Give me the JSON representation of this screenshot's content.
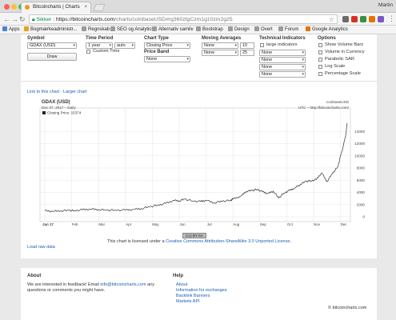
{
  "browser": {
    "tab_title": "Bitcoincharts | Charts",
    "tab_close": "×",
    "user_name": "Martin",
    "secure_label": "Sikker",
    "url_host": "https://bitcoincharts.com",
    "url_path": "/charts/coinbaseUSD#rg360ztgCzm1g10zm2g25",
    "back": "←",
    "forward": "→",
    "reload": "↻",
    "star": "☆"
  },
  "bookmarks": [
    {
      "label": "Apps",
      "color": "#4a7fd8"
    },
    {
      "label": "Bogmærkeadministr...",
      "color": "#e8a21a"
    },
    {
      "label": "Regnskab",
      "color": "#7c7c7c"
    },
    {
      "label": "SEO og Analytics",
      "color": "#7c7c7c"
    },
    {
      "label": "Alternativ samliv",
      "color": "#7c7c7c"
    },
    {
      "label": "Bootstrap",
      "color": "#7c7c7c"
    },
    {
      "label": "Design",
      "color": "#7c7c7c"
    },
    {
      "label": "Overt",
      "color": "#7c7c7c"
    },
    {
      "label": "Forum",
      "color": "#7c7c7c"
    },
    {
      "label": "Google Analytics",
      "color": "#e37400"
    }
  ],
  "controls": {
    "symbol": {
      "label": "Symbol",
      "value": "GDAX (USD)",
      "draw": "Draw"
    },
    "time_period": {
      "label": "Time Period",
      "value": "1 year",
      "step": "auto",
      "custom": "Custom Time"
    },
    "chart_type": {
      "label": "Chart Type",
      "value": "Closing Price"
    },
    "price_band": {
      "label": "Price Band",
      "value": "None"
    },
    "moving_averages": {
      "label": "Moving Averages",
      "rows": [
        {
          "type": "None",
          "n": "10"
        },
        {
          "type": "None",
          "n": "25"
        }
      ]
    },
    "technical": {
      "label": "Technical Indicators",
      "large": "large indicators",
      "selects": [
        "None",
        "None",
        "None",
        "None"
      ]
    },
    "options": {
      "label": "Options",
      "items": [
        "Show Volume Bars",
        "Volume in Currency",
        "Parabolic SAR",
        "Log Scale",
        "Percentage Scale"
      ]
    }
  },
  "links": {
    "link_chart": "Link to this chart",
    "sep": "·",
    "larger": "Larger chart",
    "raw": "Load raw data"
  },
  "chart": {
    "symbol": "GDAX (USD)",
    "date_line": "Dec 07, 2017 – Daily",
    "legend": "Closing Price: 15374",
    "source": "coinbaseUSD",
    "tz": "UTC – http://bitcoincharts.com/",
    "license_prefix": "This chart is licensed under a",
    "license_link": "Creative Commons Attribution-ShareAlike 3.0 Unported License",
    "cc_badge": "(cc) BY-SA",
    "line_color": "#333333"
  },
  "chart_data": {
    "type": "line",
    "title": "GDAX (USD)",
    "subtitle": "Dec 07, 2017 – Daily",
    "xlabel": "",
    "ylabel": "",
    "x_ticks": [
      "Jan 17",
      "Feb",
      "Mar",
      "Apr",
      "May",
      "Jun",
      "Jul",
      "Aug",
      "Sep",
      "Oct",
      "Nov",
      "Dec"
    ],
    "y_ticks": [
      0,
      2000,
      4000,
      6000,
      8000,
      10000,
      12000,
      14000
    ],
    "ylim": [
      0,
      16000
    ],
    "grid": true,
    "series": [
      {
        "name": "Closing Price",
        "x": [
          0,
          0.3,
          0.6,
          0.9,
          1.1,
          1.4,
          1.7,
          2.0,
          2.3,
          2.6,
          3.0,
          3.3,
          3.6,
          3.9,
          4.2,
          4.5,
          4.8,
          5.0,
          5.2,
          5.5,
          5.8,
          6.0,
          6.3,
          6.6,
          6.9,
          7.0,
          7.3,
          7.5,
          7.7,
          7.9,
          8.1,
          8.3,
          8.5,
          8.7,
          8.9,
          9.1,
          9.3,
          9.5,
          9.7,
          9.9,
          10.1,
          10.3,
          10.5,
          10.7,
          10.9,
          11.0,
          11.1,
          11.2,
          11.25
        ],
        "y": [
          1000,
          900,
          1000,
          1050,
          1010,
          1150,
          1250,
          1200,
          1080,
          1100,
          1100,
          1200,
          1350,
          1650,
          1900,
          2200,
          2700,
          2600,
          2900,
          2600,
          2500,
          2700,
          2300,
          2550,
          2700,
          2900,
          3400,
          4200,
          4300,
          4500,
          4100,
          3800,
          4200,
          3100,
          3900,
          4300,
          4700,
          5300,
          5800,
          5900,
          6100,
          7200,
          5800,
          7100,
          8200,
          9900,
          11500,
          13500,
          15374
        ]
      }
    ]
  },
  "footer": {
    "about_title": "About",
    "about_text_1": "We are interested in feedback! Email",
    "about_email": "info@bitcoincharts.com",
    "about_text_2": "any",
    "about_text_3": "questions or comments you might have.",
    "help_title": "Help",
    "help_links": [
      "About",
      "Information for exchanges",
      "Backlink Banners",
      "Markets API"
    ],
    "copyright": "© bitcoincharts.com"
  }
}
